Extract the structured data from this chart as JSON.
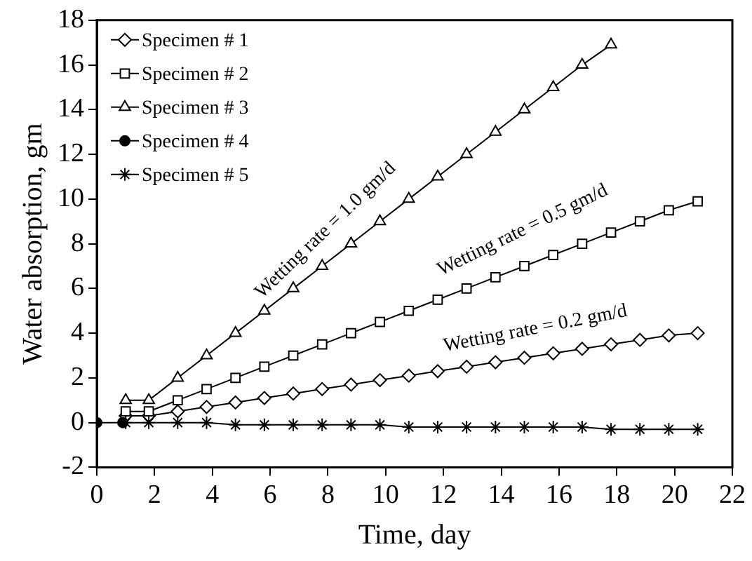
{
  "chart_data": {
    "type": "line",
    "xlabel": "Time, day",
    "ylabel": "Water absorption, gm",
    "xlim": [
      0,
      22
    ],
    "xticks": [
      0,
      2,
      4,
      6,
      8,
      10,
      12,
      14,
      16,
      18,
      20,
      22
    ],
    "ylim": [
      -2,
      18
    ],
    "yticks": [
      -2,
      0,
      2,
      4,
      6,
      8,
      10,
      12,
      14,
      16,
      18
    ],
    "grid": false,
    "legend": "top left",
    "series": [
      {
        "name": "Specimen # 1",
        "color": "#000000",
        "marker": "diamond",
        "x": [
          1,
          1.8,
          2.8,
          3.8,
          4.8,
          5.8,
          6.8,
          7.8,
          8.8,
          9.8,
          10.8,
          11.8,
          12.8,
          13.8,
          14.8,
          15.8,
          16.8,
          17.8,
          18.8,
          19.8,
          20.8
        ],
        "values": [
          0.3,
          0.3,
          0.5,
          0.7,
          0.9,
          1.1,
          1.3,
          1.5,
          1.7,
          1.9,
          2.1,
          2.3,
          2.5,
          2.7,
          2.9,
          3.1,
          3.3,
          3.5,
          3.7,
          3.9,
          4.0
        ]
      },
      {
        "name": "Specimen # 2",
        "color": "#000000",
        "marker": "square",
        "x": [
          1,
          1.8,
          2.8,
          3.8,
          4.8,
          5.8,
          6.8,
          7.8,
          8.8,
          9.8,
          10.8,
          11.8,
          12.8,
          13.8,
          14.8,
          15.8,
          16.8,
          17.8,
          18.8,
          19.8,
          20.8
        ],
        "values": [
          0.5,
          0.5,
          1.0,
          1.5,
          2.0,
          2.5,
          3.0,
          3.5,
          4.0,
          4.5,
          5.0,
          5.5,
          6.0,
          6.5,
          7.0,
          7.5,
          8.0,
          8.5,
          9.0,
          9.5,
          9.9
        ]
      },
      {
        "name": "Specimen # 3",
        "color": "#000000",
        "marker": "triangle",
        "x": [
          1,
          1.8,
          2.8,
          3.8,
          4.8,
          5.8,
          6.8,
          7.8,
          8.8,
          9.8,
          10.8,
          11.8,
          12.8,
          13.8,
          14.8,
          15.8,
          16.8,
          17.8
        ],
        "values": [
          1,
          1,
          2,
          3,
          4,
          5,
          6,
          7,
          8,
          9,
          10,
          11,
          12,
          13,
          14,
          15,
          16,
          16.9
        ]
      },
      {
        "name": "Specimen # 4",
        "color": "#000000",
        "marker": "circle",
        "x": [
          0,
          0.9
        ],
        "values": [
          0,
          0
        ]
      },
      {
        "name": "Specimen # 5",
        "color": "#000000",
        "marker": "cross",
        "x": [
          1,
          1.8,
          2.8,
          3.8,
          4.8,
          5.8,
          6.8,
          7.8,
          8.8,
          9.8,
          10.8,
          11.8,
          12.8,
          13.8,
          14.8,
          15.8,
          16.8,
          17.8,
          18.8,
          19.8,
          20.8
        ],
        "values": [
          0,
          0,
          0,
          0,
          -0.1,
          -0.1,
          -0.1,
          -0.1,
          -0.1,
          -0.1,
          -0.2,
          -0.2,
          -0.2,
          -0.2,
          -0.2,
          -0.2,
          -0.2,
          -0.3,
          -0.3,
          -0.3,
          -0.3
        ]
      }
    ],
    "annotations": [
      "Wetting rate = 1.0 gm/d",
      "Wetting rate = 0.5 gm/d",
      "Wetting rate = 0.2 gm/d"
    ]
  }
}
